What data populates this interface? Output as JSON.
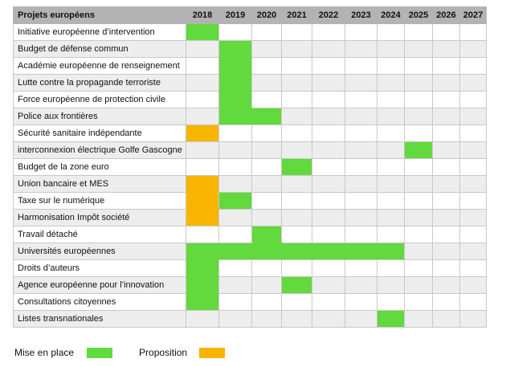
{
  "header": {
    "project_label": "Projets européens",
    "years": [
      "2018",
      "2019",
      "2020",
      "2021",
      "2022",
      "2023",
      "2024",
      "2025",
      "2026",
      "2027"
    ]
  },
  "colors": {
    "mise_en_place": "#62d93c",
    "proposition": "#f7b500",
    "header_bg": "#b3b3b3",
    "row_alt_bg": "#ededed"
  },
  "projects": [
    {
      "name": "Initiative européenne d’intervention",
      "cells": [
        "mise",
        "",
        "",
        "",
        "",
        "",
        "",
        "",
        "",
        ""
      ]
    },
    {
      "name": "Budget de défense commun",
      "cells": [
        "",
        "mise",
        "",
        "",
        "",
        "",
        "",
        "",
        "",
        ""
      ]
    },
    {
      "name": "Académie européenne de renseignement",
      "cells": [
        "",
        "mise",
        "",
        "",
        "",
        "",
        "",
        "",
        "",
        ""
      ]
    },
    {
      "name": "Lutte contre la propagande terroriste",
      "cells": [
        "",
        "mise",
        "",
        "",
        "",
        "",
        "",
        "",
        "",
        ""
      ]
    },
    {
      "name": "Force européenne de protection civile",
      "cells": [
        "",
        "mise",
        "",
        "",
        "",
        "",
        "",
        "",
        "",
        ""
      ]
    },
    {
      "name": "Police aux frontières",
      "cells": [
        "",
        "mise",
        "mise",
        "",
        "",
        "",
        "",
        "",
        "",
        ""
      ]
    },
    {
      "name": "Sécurité sanitaire indépendante",
      "cells": [
        "prop",
        "",
        "",
        "",
        "",
        "",
        "",
        "",
        "",
        ""
      ]
    },
    {
      "name": "interconnexion électrique Golfe Gascogne",
      "cells": [
        "",
        "",
        "",
        "",
        "",
        "",
        "",
        "mise",
        "",
        ""
      ]
    },
    {
      "name": "Budget de la zone euro",
      "cells": [
        "",
        "",
        "",
        "mise",
        "",
        "",
        "",
        "",
        "",
        ""
      ]
    },
    {
      "name": "Union bancaire et MES",
      "cells": [
        "prop",
        "",
        "",
        "",
        "",
        "",
        "",
        "",
        "",
        ""
      ]
    },
    {
      "name": "Taxe sur le numérique",
      "cells": [
        "prop",
        "mise",
        "",
        "",
        "",
        "",
        "",
        "",
        "",
        ""
      ]
    },
    {
      "name": "Harmonisation Impôt société",
      "cells": [
        "prop",
        "",
        "",
        "",
        "",
        "",
        "",
        "",
        "",
        ""
      ]
    },
    {
      "name": "Travail détaché",
      "cells": [
        "",
        "",
        "mise",
        "",
        "",
        "",
        "",
        "",
        "",
        ""
      ]
    },
    {
      "name": "Universités européennes",
      "cells": [
        "mise",
        "mise",
        "mise",
        "mise",
        "mise",
        "mise",
        "mise",
        "",
        "",
        ""
      ]
    },
    {
      "name": "Droits d’auteurs",
      "cells": [
        "mise",
        "",
        "",
        "",
        "",
        "",
        "",
        "",
        "",
        ""
      ]
    },
    {
      "name": "Agence européenne pour l’innovation",
      "cells": [
        "mise",
        "",
        "",
        "mise",
        "",
        "",
        "",
        "",
        "",
        ""
      ]
    },
    {
      "name": "Consultations citoyennes",
      "cells": [
        "mise",
        "",
        "",
        "",
        "",
        "",
        "",
        "",
        "",
        ""
      ]
    },
    {
      "name": "Listes transnationales",
      "cells": [
        "",
        "",
        "",
        "",
        "",
        "",
        "mise",
        "",
        "",
        ""
      ]
    }
  ],
  "legend": {
    "mise_en_place": "Mise en place",
    "proposition": "Proposition"
  }
}
